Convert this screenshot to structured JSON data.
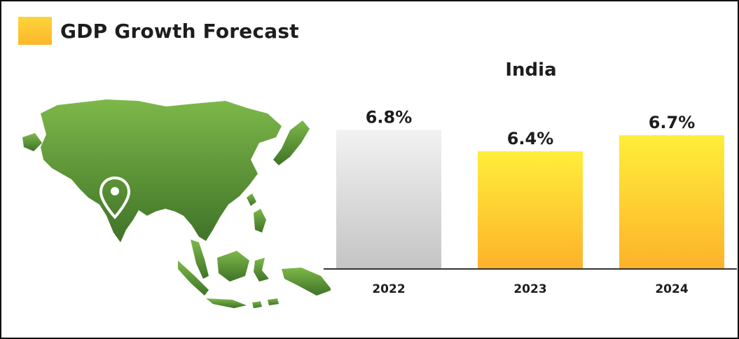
{
  "header": {
    "title": "GDP Growth Forecast",
    "accent_color": "#FDC530"
  },
  "map": {
    "region_icon": "asia-map-icon",
    "marker_icon": "location-pin-icon",
    "land_color": "#6fa640"
  },
  "chart_data": {
    "type": "bar",
    "title": "India",
    "xlabel": "",
    "ylabel": "",
    "categories": [
      "2022",
      "2023",
      "2024"
    ],
    "values": [
      6.8,
      6.4,
      6.7
    ],
    "value_labels": [
      "6.8%",
      "6.4%",
      "6.7%"
    ],
    "ylim": [
      0,
      7.5
    ],
    "grid": false,
    "bar_colors": [
      "#d6d6d6",
      "#fdbf2d",
      "#fdc92e"
    ]
  }
}
